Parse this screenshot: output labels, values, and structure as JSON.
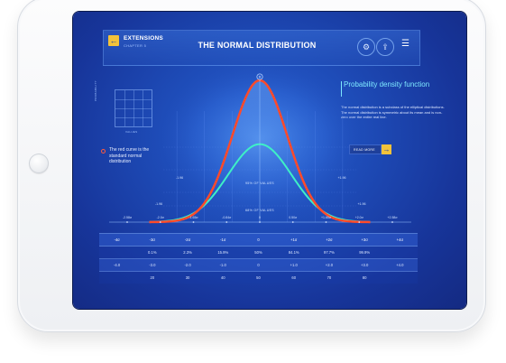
{
  "header": {
    "back_icon": "arrow-left-icon",
    "section_title": "EXTENSIONS",
    "section_subtitle": "CHAPTER 5",
    "page_title": "THE NORMAL DISTRIBUTION",
    "settings_icon": "gear-icon",
    "share_icon": "share-icon",
    "menu_icon": "hamburger-menu-icon"
  },
  "mini_chart": {
    "ylabel": "PROBABILITY",
    "xlabel": "VALUES"
  },
  "legend": {
    "text": "The red curve is the standard normal distribution"
  },
  "info_panel": {
    "title": "Probability density function",
    "body": "The normal distribution is a subclass of the elliptical distributions. The normal distribution is symmetric about its mean and is non-zero over the entire real line.",
    "read_more": "READ MORE"
  },
  "chart": {
    "top_marker": "0",
    "labels": {
      "pct95": "95% OF VALUES",
      "pct68": "68% OF VALUES",
      "left_sd1": "-1.96",
      "right_sd1": "+1.96",
      "left_sd2": "-1.96",
      "right_sd2": "+1.96"
    },
    "axis_ticks": [
      "-2.58σ",
      "-2.0σ",
      "-1.65σ",
      "-0.84σ",
      "0",
      "0.50σ",
      "+1.65σ",
      "+2.0σ",
      "+2.58σ"
    ]
  },
  "chart_data": {
    "type": "line",
    "series": [
      {
        "name": "",
        "color": "#ff4a2a",
        "peak": 1.0,
        "sigma": 1.0
      },
      {
        "name": "",
        "color": "#3ef0c6",
        "peak": 0.55,
        "sigma": 1.15
      }
    ],
    "color_scheme": {
      "red": "#ff4a2a",
      "teal": "#3ef0c6",
      "grid": "#5a8cff"
    }
  },
  "table": {
    "header": [
      "-4σ",
      "-3σ",
      "-2σ",
      "-1σ",
      "0",
      "+1σ",
      "+2σ",
      "+3σ",
      "+4σ"
    ],
    "rows": [
      [
        "",
        "0.1%",
        "2.3%",
        "15.9%",
        "50%",
        "84.1%",
        "97.7%",
        "99.9%",
        ""
      ],
      [
        "-4.0",
        "-3.0",
        "-2.0",
        "-1.0",
        "0",
        "+1.0",
        "+2.0",
        "+3.0",
        "+4.0"
      ],
      [
        "",
        "20",
        "30",
        "40",
        "50",
        "60",
        "70",
        "80",
        ""
      ]
    ]
  }
}
